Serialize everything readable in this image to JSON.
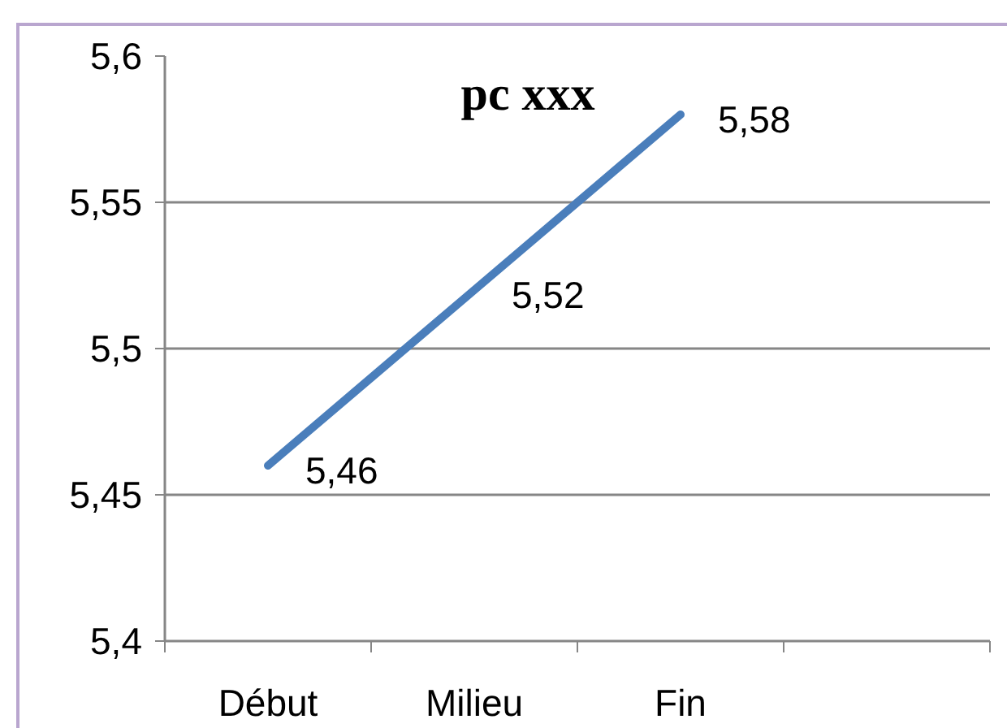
{
  "chart_data": {
    "type": "line",
    "title": "pc xxx",
    "categories": [
      "Début",
      "Milieu",
      "Fin",
      null
    ],
    "values": [
      5.46,
      5.52,
      5.58,
      null
    ],
    "color": "#4a7ebb",
    "line_style": "solid",
    "value_labels": [
      "5,46",
      "5,52",
      "5,58",
      null
    ],
    "ylim": [
      5.4,
      5.6
    ],
    "yticks": [
      {
        "value": 5.4,
        "label": "5,4"
      },
      {
        "value": 5.45,
        "label": "5,45"
      },
      {
        "value": 5.5,
        "label": "5,5"
      },
      {
        "value": 5.55,
        "label": "5,55"
      },
      {
        "value": 5.6,
        "label": "5,6"
      }
    ],
    "grid": "y"
  }
}
